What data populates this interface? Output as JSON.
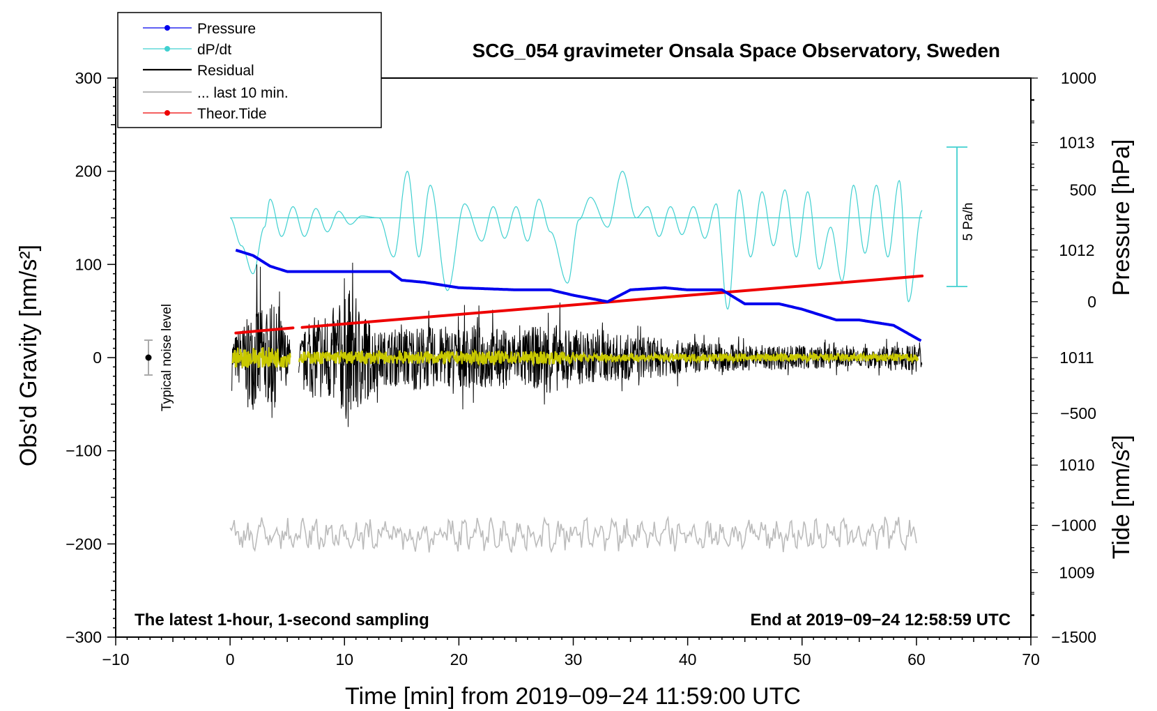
{
  "chart_data": {
    "type": "line",
    "title": "SCG_054 gravimeter Onsala Space Observatory, Sweden",
    "xlabel": "Time [min] from 2019−09−24 11:59:00 UTC",
    "ylabel_left": "Obs'd Gravity [nm/s²]",
    "ylabel_pressure": "Pressure [hPa]",
    "ylabel_tide": "Tide [nm/s²]",
    "xlim": [
      -10,
      70
    ],
    "ylim": [
      -300,
      300
    ],
    "x_ticks": [
      "−10",
      "0",
      "10",
      "20",
      "30",
      "40",
      "50",
      "60",
      "70"
    ],
    "y_ticks": [
      "300",
      "200",
      "100",
      "0",
      "−100",
      "−200",
      "−300"
    ],
    "pressure_axis": {
      "range": [
        1008.4,
        1013.6
      ],
      "ticks": [
        "1013",
        "1012",
        "1011",
        "1010",
        "1009"
      ]
    },
    "tide_axis": {
      "range": [
        -1500,
        1000
      ],
      "ticks": [
        "1000",
        "500",
        "0",
        "−500",
        "−1000",
        "−1500"
      ]
    },
    "legend": {
      "position": "top-left",
      "entries": [
        {
          "label": "Pressure",
          "color": "#0000ee",
          "marker": "dot"
        },
        {
          "label": "dP/dt",
          "color": "#40d0d0",
          "marker": "dot"
        },
        {
          "label": "Residual",
          "color": "#000000",
          "marker": "line"
        },
        {
          "label": "... last 10 min.",
          "color": "#bbbbbb",
          "marker": "line"
        },
        {
          "label": "Theor.Tide",
          "color": "#ee0000",
          "marker": "dot"
        }
      ]
    },
    "annotations": {
      "bottom_left": "The latest 1-hour, 1-second sampling",
      "bottom_right": "End at 2019−09−24 12:58:59 UTC",
      "noise": "Typical noise level",
      "scale_bar": "5 Pa/h"
    },
    "series": [
      {
        "name": "Pressure",
        "axis": "pressure_hpa",
        "color": "#0000ee",
        "x": [
          0.5,
          2,
          3.5,
          5,
          10,
          14,
          15,
          17,
          20,
          25,
          28,
          30,
          33,
          35,
          38,
          40,
          43,
          45,
          48,
          50,
          53,
          55,
          58,
          60.5
        ],
        "y": [
          1012.0,
          1011.95,
          1011.85,
          1011.8,
          1011.8,
          1011.8,
          1011.72,
          1011.7,
          1011.65,
          1011.63,
          1011.63,
          1011.58,
          1011.52,
          1011.63,
          1011.65,
          1011.63,
          1011.63,
          1011.5,
          1011.5,
          1011.45,
          1011.35,
          1011.35,
          1011.3,
          1011.15
        ]
      },
      {
        "name": "dP/dt",
        "axis": "gravity",
        "color": "#40d0d0",
        "x": [
          0,
          1,
          2,
          3,
          3.5,
          4.5,
          5.5,
          6.5,
          7.5,
          8.5,
          9.5,
          10.5,
          11.5,
          13,
          14.3,
          15.5,
          16.5,
          17.5,
          19,
          20.5,
          22,
          23,
          24,
          25,
          26,
          27,
          28,
          29.5,
          30.5,
          31.5,
          33,
          34.3,
          35.5,
          36.5,
          37.5,
          38.5,
          39.5,
          40.5,
          41.5,
          42.5,
          43.5,
          44.5,
          45.5,
          46.5,
          47.5,
          48.5,
          49.5,
          50.5,
          51.5,
          52.5,
          53.5,
          54.5,
          55.5,
          56.5,
          57.5,
          58.5,
          59.3,
          60.5
        ],
        "y": [
          150,
          120,
          90,
          140,
          170,
          130,
          162,
          130,
          160,
          135,
          157,
          143,
          152,
          150,
          108,
          200,
          108,
          185,
          72,
          165,
          125,
          162,
          128,
          162,
          125,
          170,
          135,
          80,
          148,
          172,
          140,
          200,
          150,
          162,
          130,
          162,
          132,
          162,
          128,
          165,
          52,
          180,
          108,
          178,
          120,
          180,
          108,
          178,
          95,
          140,
          82,
          185,
          112,
          185,
          108,
          190,
          60,
          158
        ]
      },
      {
        "name": "Residual",
        "axis": "gravity",
        "color": "#000000",
        "x": [
          0.2,
          1.5,
          2.5,
          3.0,
          3.8,
          4.5,
          5.2,
          6.1,
          7.0,
          8.5,
          10.0,
          10.3,
          13.0,
          16.0,
          19.0,
          22.0,
          25.0,
          28.0,
          31.0,
          35.0,
          40.0,
          45.0,
          50.0,
          55.0,
          60.0
        ],
        "amplitude": [
          30,
          60,
          90,
          70,
          80,
          60,
          30,
          25,
          60,
          70,
          90,
          110,
          40,
          50,
          45,
          50,
          40,
          55,
          40,
          35,
          25,
          20,
          18,
          15,
          20
        ],
        "gaps": [
          [
            5.3,
            6.0
          ]
        ]
      },
      {
        "name": "... last 10 min.",
        "axis": "gravity",
        "color": "#bbbbbb",
        "x_range": [
          0,
          60
        ],
        "center": -190,
        "amplitude": 12
      },
      {
        "name": "Theor.Tide",
        "axis": "tide",
        "color": "#ee0000",
        "x": [
          0.5,
          5.5,
          6.3,
          60.5
        ],
        "y": [
          -140,
          -117,
          -115,
          115
        ],
        "gaps": [
          [
            5.5,
            6.3
          ]
        ]
      },
      {
        "name": "Residual smoothed",
        "axis": "gravity",
        "color": "#c8c800",
        "x_range": [
          0,
          60
        ],
        "center": 0,
        "amplitude": 7
      }
    ]
  }
}
